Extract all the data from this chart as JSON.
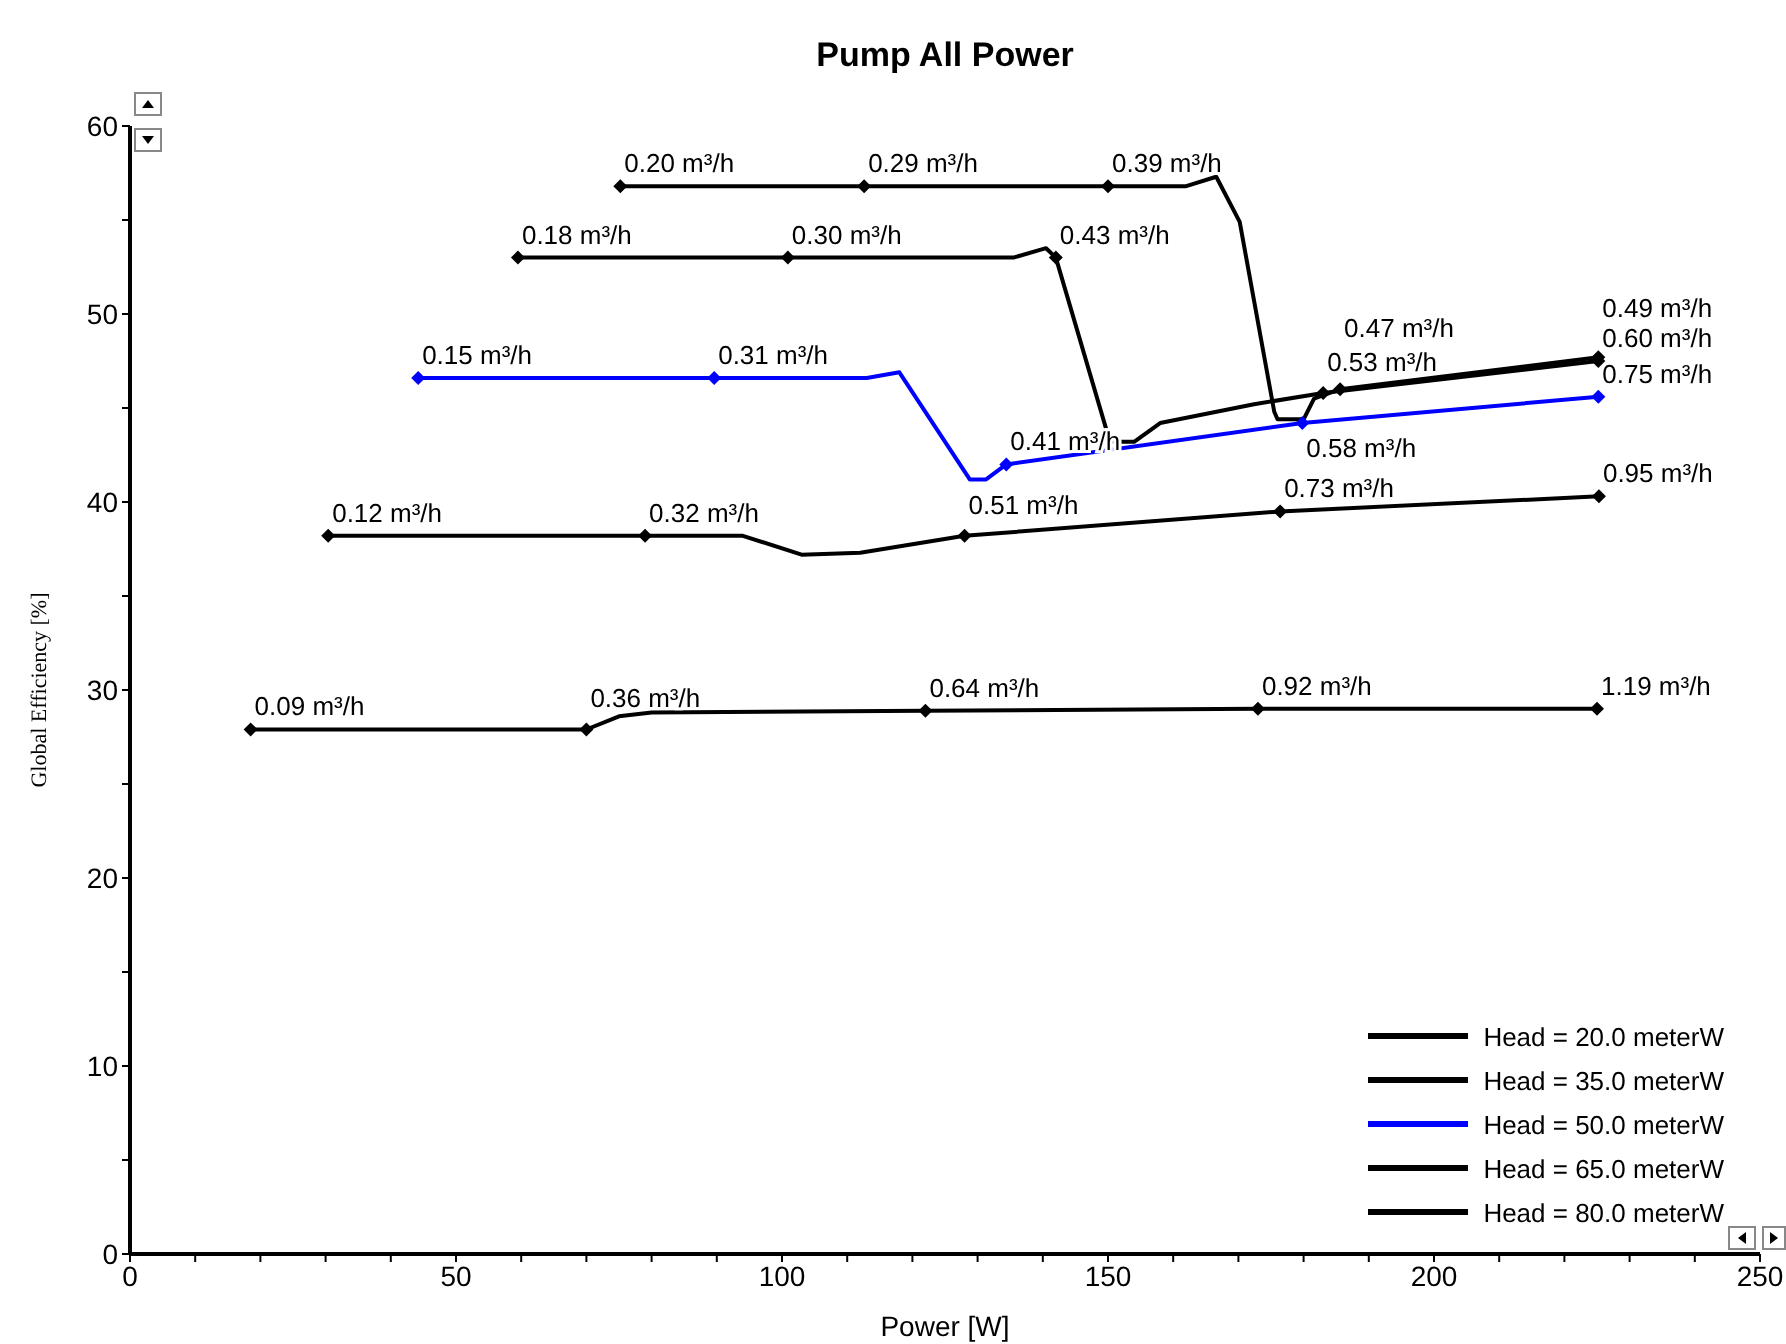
{
  "chart_data": {
    "type": "line",
    "title": "Pump All Power",
    "xlabel": "Power [W]",
    "ylabel": "Global Efficiency [%]",
    "xlim": [
      0,
      250
    ],
    "ylim": [
      0,
      60
    ],
    "xticks": [
      0,
      {
        "value": 10,
        "label": null
      },
      {
        "value": 20,
        "label": null
      },
      {
        "value": 30,
        "label": null
      },
      {
        "value": 40,
        "label": null
      },
      50,
      {
        "value": 60,
        "label": null
      },
      {
        "value": 70,
        "label": null
      },
      {
        "value": 80,
        "label": null
      },
      {
        "value": 90,
        "label": null
      },
      100,
      {
        "value": 110,
        "label": null
      },
      {
        "value": 120,
        "label": null
      },
      {
        "value": 130,
        "label": null
      },
      {
        "value": 140,
        "label": null
      },
      150,
      {
        "value": 160,
        "label": null
      },
      {
        "value": 170,
        "label": null
      },
      {
        "value": 180,
        "label": null
      },
      {
        "value": 190,
        "label": null
      },
      200,
      {
        "value": 210,
        "label": null
      },
      {
        "value": 220,
        "label": null
      },
      {
        "value": 230,
        "label": null
      },
      {
        "value": 240,
        "label": null
      },
      250
    ],
    "yticks": [
      0,
      {
        "value": 5,
        "label": null
      },
      10,
      {
        "value": 15,
        "label": null
      },
      20,
      {
        "value": 25,
        "label": null
      },
      30,
      {
        "value": 35,
        "label": null
      },
      40,
      {
        "value": 45,
        "label": null
      },
      50,
      {
        "value": 55,
        "label": null
      },
      60
    ],
    "grid": false,
    "legend": "bottom right",
    "line_style": "solid",
    "series": [
      {
        "name": "Head = 20.0 meterW",
        "color": "#000000",
        "x": [
          18.5,
          70,
          75,
          80,
          122,
          173,
          225
        ],
        "values": [
          27.9,
          27.9,
          28.6,
          28.8,
          28.9,
          29.0,
          29.0
        ]
      },
      {
        "name": "Head = 35.0 meterW",
        "color": "#000000",
        "x": [
          30.4,
          79,
          94,
          103,
          112,
          128,
          176.4,
          225.3
        ],
        "values": [
          38.2,
          38.2,
          38.2,
          37.2,
          37.3,
          38.2,
          39.5,
          40.3
        ]
      },
      {
        "name": "Head = 50.0 meterW",
        "color": "#0000ff",
        "x": [
          44.2,
          89.6,
          113,
          118,
          128.8,
          131.3,
          134.4,
          179.8,
          225.2
        ],
        "values": [
          46.6,
          46.6,
          46.6,
          46.9,
          41.2,
          41.2,
          42.0,
          44.2,
          45.6
        ]
      },
      {
        "name": "Head = 65.0 meterW",
        "color": "#000000",
        "x": [
          59.5,
          100.9,
          135.5,
          140.5,
          142,
          150.3,
          154,
          158,
          172.4,
          183,
          225.2
        ],
        "values": [
          53.0,
          53.0,
          53.0,
          53.5,
          53.0,
          43.2,
          43.2,
          44.2,
          45.2,
          45.8,
          47.5
        ]
      },
      {
        "name": "Head = 80.0 meterW",
        "color": "#000000",
        "x": [
          75.2,
          112.6,
          150,
          162,
          166.6,
          170.2,
          175.5,
          176,
          180,
          181.6,
          185.6,
          225.2
        ],
        "values": [
          56.8,
          56.8,
          56.8,
          56.8,
          57.3,
          54.9,
          44.8,
          44.4,
          44.4,
          45.5,
          46.0,
          47.7
        ]
      }
    ],
    "annotations": [
      {
        "text": "0.09 m³/h",
        "x": 18.5,
        "y": 27.9
      },
      {
        "text": "0.36 m³/h",
        "x": 70,
        "y": 27.9
      },
      {
        "text": "0.64 m³/h",
        "x": 122,
        "y": 28.9
      },
      {
        "text": "0.92 m³/h",
        "x": 173,
        "y": 29.0
      },
      {
        "text": "1.19 m³/h",
        "x": 225,
        "y": 29.0
      },
      {
        "text": "0.12 m³/h",
        "x": 30.4,
        "y": 38.2
      },
      {
        "text": "0.32 m³/h",
        "x": 79,
        "y": 38.2
      },
      {
        "text": "0.51 m³/h",
        "x": 128,
        "y": 38.2
      },
      {
        "text": "0.73 m³/h",
        "x": 176.4,
        "y": 39.5
      },
      {
        "text": "0.95 m³/h",
        "x": 225.3,
        "y": 40.3
      },
      {
        "text": "0.15 m³/h",
        "x": 44.2,
        "y": 46.6
      },
      {
        "text": "0.31 m³/h",
        "x": 89.6,
        "y": 46.6
      },
      {
        "text": "0.41 m³/h",
        "x": 134.4,
        "y": 42.0
      },
      {
        "text": "0.58 m³/h",
        "x": 179.8,
        "y": 44.2
      },
      {
        "text": "0.75 m³/h",
        "x": 225.2,
        "y": 45.6
      },
      {
        "text": "0.18 m³/h",
        "x": 59.5,
        "y": 53.0
      },
      {
        "text": "0.30 m³/h",
        "x": 100.9,
        "y": 53.0
      },
      {
        "text": "0.43 m³/h",
        "x": 142,
        "y": 53.0
      },
      {
        "text": "0.53 m³/h",
        "x": 183,
        "y": 45.8
      },
      {
        "text": "0.60 m³/h",
        "x": 225.2,
        "y": 47.5
      },
      {
        "text": "0.20 m³/h",
        "x": 75.2,
        "y": 56.8
      },
      {
        "text": "0.29 m³/h",
        "x": 112.6,
        "y": 56.8
      },
      {
        "text": "0.39 m³/h",
        "x": 150,
        "y": 56.8
      },
      {
        "text": "0.47 m³/h",
        "x": 185.6,
        "y": 46.0
      },
      {
        "text": "0.49 m³/h",
        "x": 225.2,
        "y": 47.7
      }
    ]
  }
}
